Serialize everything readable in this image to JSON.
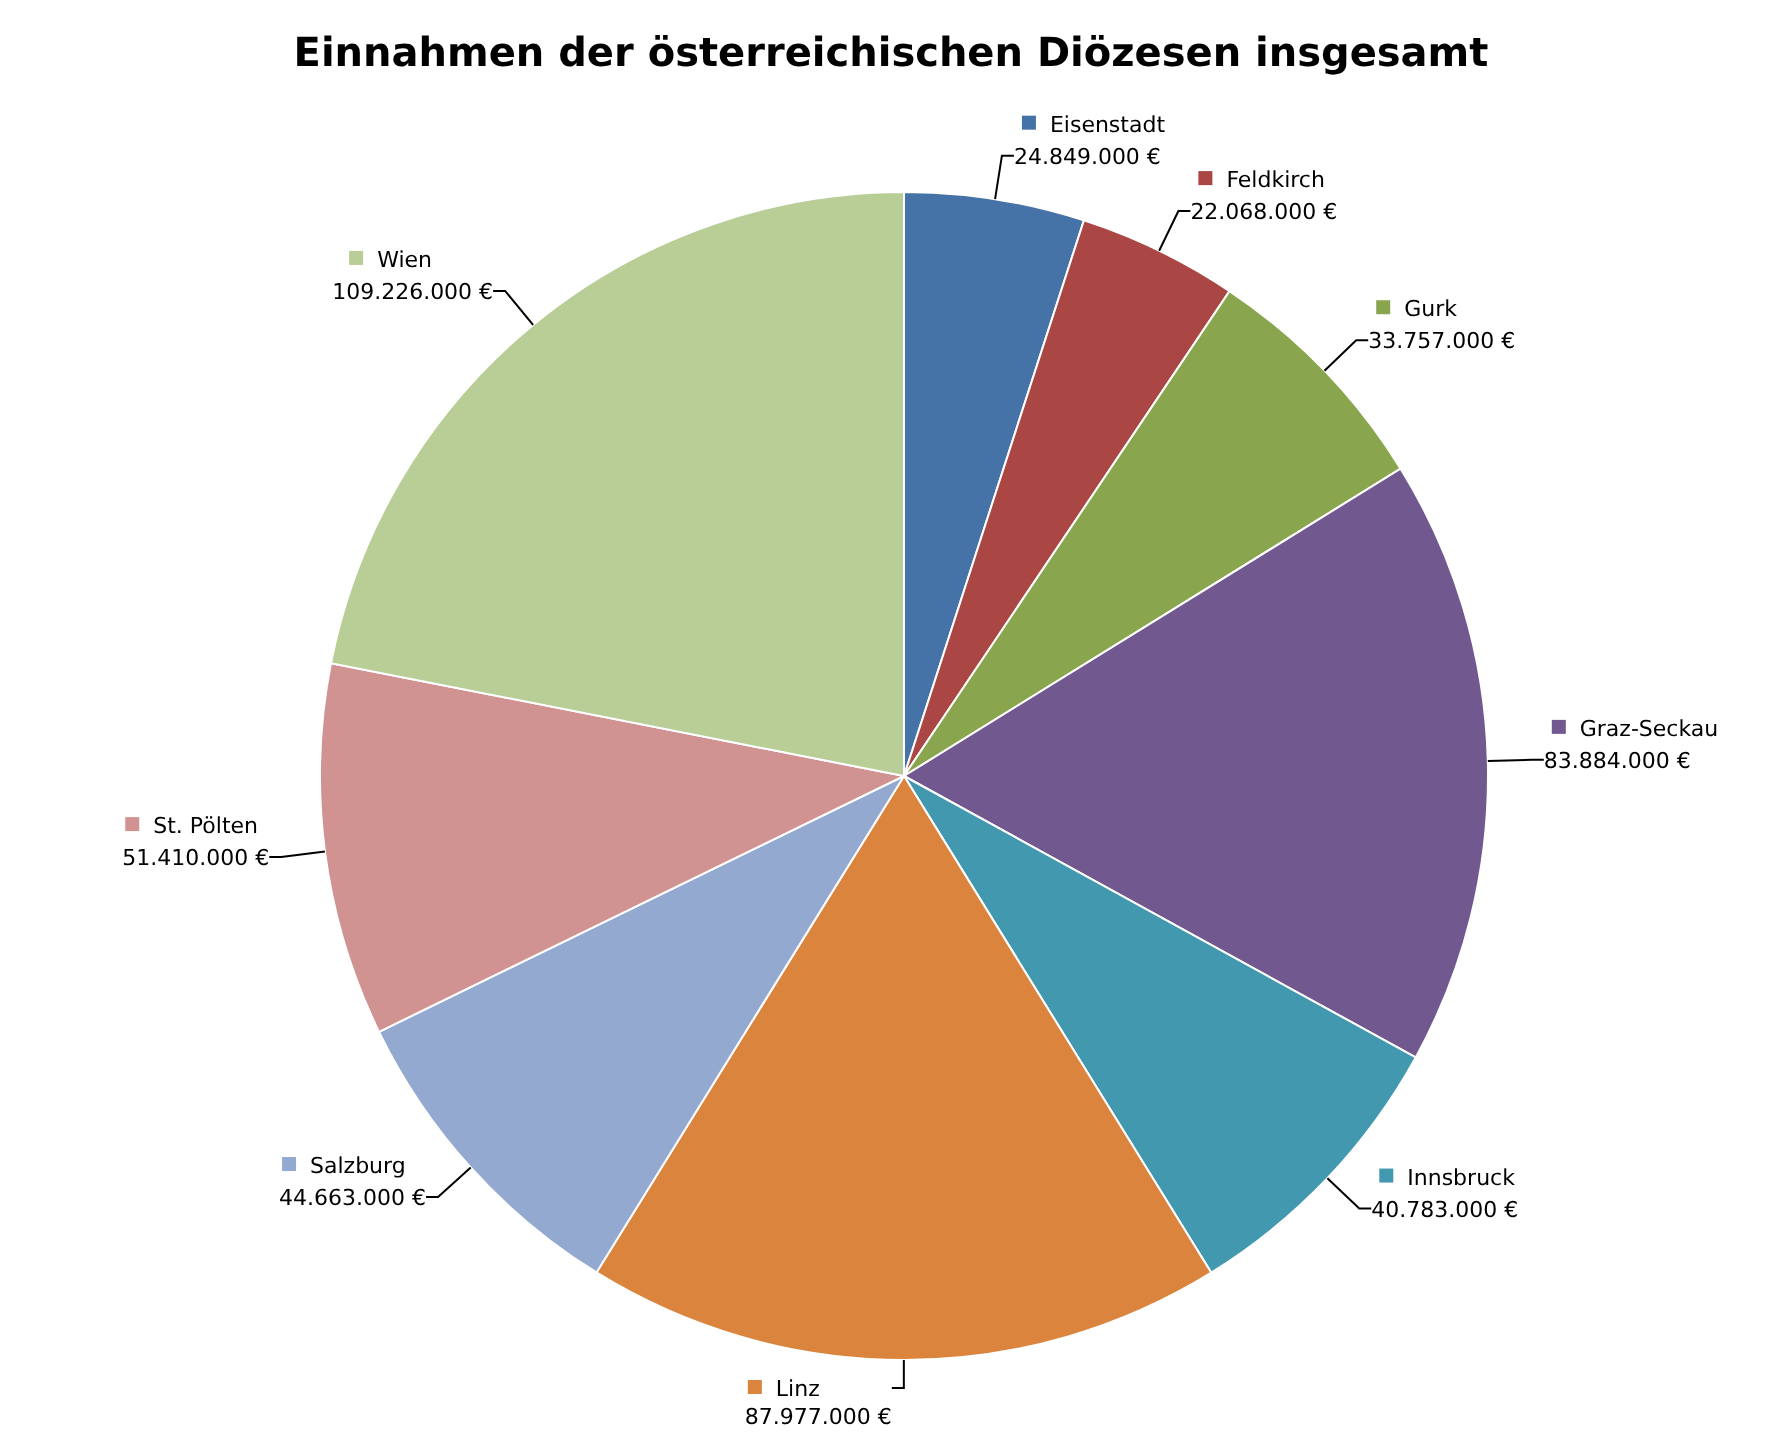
{
  "chart_data": {
    "type": "pie",
    "title": "Einnahmen der österreichischen Diözesen insgesamt",
    "categories": [
      "Eisenstadt",
      "Feldkirch",
      "Gurk",
      "Graz-Seckau",
      "Innsbruck",
      "Linz",
      "Salzburg",
      "St. Pölten",
      "Wien"
    ],
    "values": [
      24849000,
      22068000,
      33757000,
      83884000,
      40783000,
      87977000,
      44663000,
      51410000,
      109226000
    ],
    "value_labels": [
      "24.849.000 €",
      "22.068.000 €",
      "33.757.000 €",
      "83.884.000 €",
      "40.783.000 €",
      "87.977.000 €",
      "44.663.000 €",
      "51.410.000 €",
      "109.226.000 €"
    ],
    "colors": [
      "#4572a7",
      "#aa4643",
      "#89a54e",
      "#71588f",
      "#4198af",
      "#db843d",
      "#93a9cf",
      "#d19392",
      "#b9cd96"
    ],
    "legend": true
  }
}
